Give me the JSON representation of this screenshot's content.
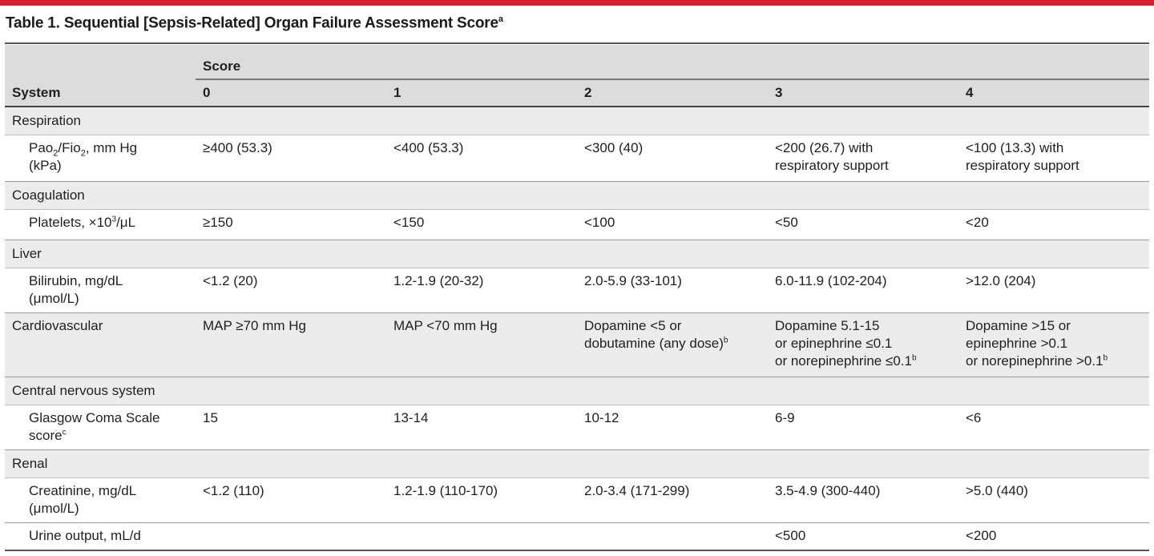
{
  "caption": {
    "text": "Table 1. Sequential [Sepsis-Related] Organ Failure Assessment Score",
    "footnote": "a"
  },
  "header": {
    "score_label": "Score",
    "system_label": "System",
    "score_columns": [
      "0",
      "1",
      "2",
      "3",
      "4"
    ]
  },
  "rows": {
    "respiration": {
      "system": "Respiration",
      "indicator_main": "Pao",
      "indicator_sub1": "2",
      "indicator_mid": "/Fio",
      "indicator_sub2": "2",
      "indicator_tail": ", mm Hg",
      "indicator_line2": "(kPa)",
      "s0": "≥400 (53.3)",
      "s1": "<400 (53.3)",
      "s2": "<300 (40)",
      "s3_l1": "<200 (26.7) with",
      "s3_l2": "respiratory support",
      "s4_l1": "<100 (13.3) with",
      "s4_l2": "respiratory support"
    },
    "coagulation": {
      "system": "Coagulation",
      "indicator_main": "Platelets, ×10",
      "indicator_sup": "3",
      "indicator_tail": "/μL",
      "s0": "≥150",
      "s1": "<150",
      "s2": "<100",
      "s3": "<50",
      "s4": "<20"
    },
    "liver": {
      "system": "Liver",
      "indicator_l1": "Bilirubin, mg/dL",
      "indicator_l2": "(μmol/L)",
      "s0": "<1.2 (20)",
      "s1": "1.2-1.9 (20-32)",
      "s2": "2.0-5.9 (33-101)",
      "s3": "6.0-11.9 (102-204)",
      "s4": ">12.0 (204)"
    },
    "cardiovascular": {
      "system": "Cardiovascular",
      "s0": "MAP ≥70 mm Hg",
      "s1": "MAP <70 mm Hg",
      "s2_l1": "Dopamine <5 or",
      "s2_l2": "dobutamine (any dose)",
      "s2_fn": "b",
      "s3_l1": "Dopamine 5.1-15",
      "s3_l2": "or epinephrine ≤0.1",
      "s3_l3": "or norepinephrine ≤0.1",
      "s3_fn": "b",
      "s4_l1": "Dopamine >15 or",
      "s4_l2": "epinephrine >0.1",
      "s4_l3": "or norepinephrine >0.1",
      "s4_fn": "b"
    },
    "cns": {
      "system": "Central nervous system",
      "indicator_l1": "Glasgow Coma Scale",
      "indicator_l2": "score",
      "indicator_fn": "c",
      "s0": "15",
      "s1": "13-14",
      "s2": "10-12",
      "s3": "6-9",
      "s4": "<6"
    },
    "renal": {
      "system": "Renal",
      "creat_l1": "Creatinine, mg/dL",
      "creat_l2": "(μmol/L)",
      "creat_s0": "<1.2 (110)",
      "creat_s1": "1.2-1.9 (110-170)",
      "creat_s2": "2.0-3.4 (171-299)",
      "creat_s3": "3.5-4.9 (300-440)",
      "creat_s4": ">5.0 (440)",
      "urine_label": "Urine output, mL/d",
      "urine_s3": "<500",
      "urine_s4": "<200"
    }
  },
  "colors": {
    "top_bar": "#d11f2e",
    "header_bg": "#dcdcdc",
    "system_row_bg": "#ececec"
  }
}
